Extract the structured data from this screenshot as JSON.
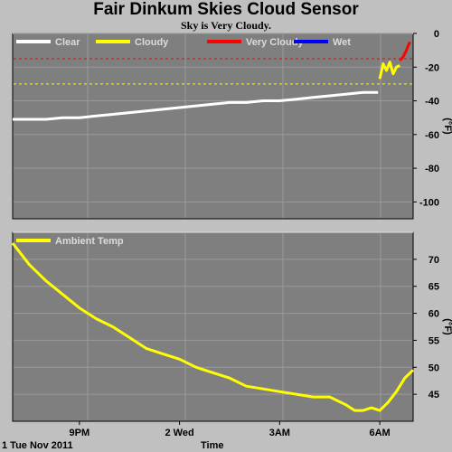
{
  "header": {
    "title": "Fair Dinkum Skies Cloud Sensor",
    "subtitle": "Sky is Very Cloudy."
  },
  "footer": {
    "date_label": "1 Tue Nov 2011",
    "xaxis_label": "Time"
  },
  "chart_data": [
    {
      "type": "line",
      "panel": "sky",
      "ylabel": "(°F)",
      "ylim": [
        -110,
        0
      ],
      "yticks": [
        "0",
        "-20",
        "-40",
        "-60",
        "-80",
        "-100"
      ],
      "ytick_values": [
        0,
        -20,
        -40,
        -60,
        -80,
        -100
      ],
      "xlim": [
        0,
        24
      ],
      "grid": true,
      "legend_placement": "top",
      "legend": [
        {
          "name": "Clear",
          "color": "#ffffff"
        },
        {
          "name": "Cloudy",
          "color": "#ffff00"
        },
        {
          "name": "Very Cloudy",
          "color": "#ff0000"
        },
        {
          "name": "Wet",
          "color": "#0000ff"
        }
      ],
      "thresholds": [
        {
          "value": -15,
          "color": "#ff0000"
        },
        {
          "value": -30,
          "color": "#ffff00"
        }
      ],
      "series": [
        {
          "name": "Clear",
          "color": "#ffffff",
          "x": [
            0,
            1,
            2,
            3,
            4,
            5,
            6,
            7,
            8,
            9,
            10,
            11,
            12,
            13,
            14,
            15,
            16,
            17,
            18,
            19,
            20,
            21,
            21.5,
            21.9
          ],
          "y": [
            -51,
            -51,
            -51,
            -50,
            -50,
            -49,
            -48,
            -47,
            -46,
            -45,
            -44,
            -43,
            -42,
            -41,
            -41,
            -40,
            -40,
            -39,
            -38,
            -37,
            -36,
            -35,
            -35,
            -35
          ]
        },
        {
          "name": "Cloudy",
          "color": "#ffff00",
          "x": [
            22.0,
            22.2,
            22.4,
            22.6,
            22.8,
            23.0,
            23.2
          ],
          "y": [
            -27,
            -18,
            -22,
            -17,
            -24,
            -20,
            -19
          ]
        },
        {
          "name": "Very Cloudy",
          "color": "#ff0000",
          "x": [
            23.2,
            23.4,
            23.6,
            23.8
          ],
          "y": [
            -16,
            -14,
            -10,
            -5
          ]
        }
      ]
    },
    {
      "type": "line",
      "panel": "ambient",
      "ylabel": "(°F)",
      "ylim": [
        40,
        75
      ],
      "yticks": [
        "70",
        "65",
        "60",
        "55",
        "50",
        "45"
      ],
      "ytick_values": [
        70,
        65,
        60,
        55,
        50,
        45
      ],
      "xlim": [
        0,
        24
      ],
      "xticks": [
        "9PM",
        "2 Wed",
        "3AM",
        "6AM"
      ],
      "xtick_values": [
        4,
        10,
        16,
        22
      ],
      "grid": true,
      "legend_placement": "top-left",
      "legend": [
        {
          "name": "Ambient Temp",
          "color": "#ffff00"
        }
      ],
      "series": [
        {
          "name": "Ambient Temp",
          "color": "#ffff00",
          "x": [
            0,
            1,
            2,
            3,
            4,
            5,
            6,
            7,
            8,
            9,
            10,
            11,
            12,
            13,
            14,
            15,
            16,
            17,
            18,
            19,
            20,
            20.5,
            21,
            21.5,
            22,
            22.5,
            23,
            23.5,
            24
          ],
          "y": [
            73,
            69,
            66,
            63.5,
            61,
            59,
            57.5,
            55.5,
            53.5,
            52.5,
            51.5,
            50,
            49,
            48,
            46.5,
            46,
            45.5,
            45,
            44.5,
            44.5,
            43,
            42,
            42,
            42.5,
            42,
            43.5,
            45.5,
            48,
            49.5
          ]
        }
      ]
    }
  ]
}
